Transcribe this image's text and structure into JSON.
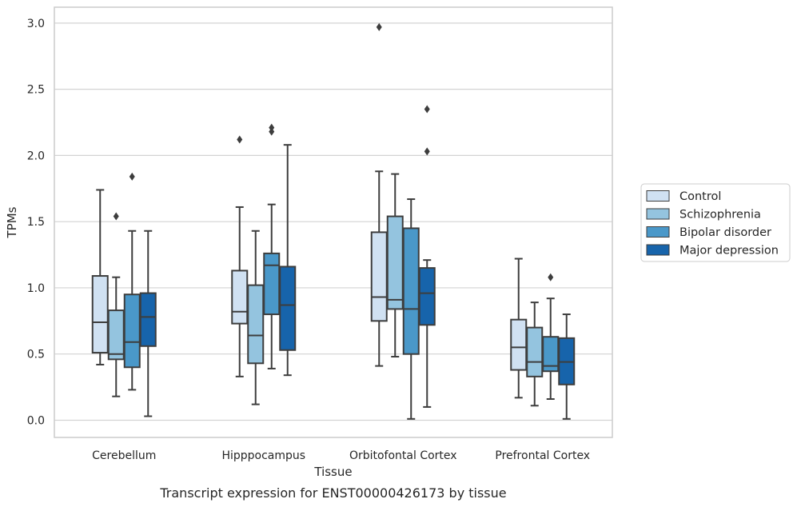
{
  "caption": "Transcript expression for ENST00000426173 by tissue",
  "chart_data": {
    "type": "box",
    "title": "",
    "xlabel": "Tissue",
    "ylabel": "TPMs",
    "ylim": [
      -0.13,
      3.12
    ],
    "yticks": [
      0.0,
      0.5,
      1.0,
      1.5,
      2.0,
      2.5,
      3.0
    ],
    "ytick_labels": [
      "0.0",
      "0.5",
      "1.0",
      "1.5",
      "2.0",
      "2.5",
      "3.0"
    ],
    "grid": "horizontal",
    "legend_position": "right",
    "categories": [
      "Cerebellum",
      "Hipppocampus",
      "Orbitofontal Cortex",
      "Prefrontal Cortex"
    ],
    "series": [
      {
        "name": "Control",
        "color": "#d0e1f2",
        "boxes": [
          {
            "whislo": 0.42,
            "q1": 0.51,
            "med": 0.74,
            "q3": 1.09,
            "whishi": 1.74,
            "fliers": []
          },
          {
            "whislo": 0.33,
            "q1": 0.73,
            "med": 0.82,
            "q3": 1.13,
            "whishi": 1.61,
            "fliers": [
              2.12
            ]
          },
          {
            "whislo": 0.41,
            "q1": 0.75,
            "med": 0.93,
            "q3": 1.42,
            "whishi": 1.88,
            "fliers": [
              2.97
            ]
          },
          {
            "whislo": 0.17,
            "q1": 0.38,
            "med": 0.55,
            "q3": 0.76,
            "whishi": 1.22,
            "fliers": []
          }
        ]
      },
      {
        "name": "Schizophrenia",
        "color": "#94c4df",
        "boxes": [
          {
            "whislo": 0.18,
            "q1": 0.46,
            "med": 0.5,
            "q3": 0.83,
            "whishi": 1.08,
            "fliers": [
              1.54
            ]
          },
          {
            "whislo": 0.12,
            "q1": 0.43,
            "med": 0.64,
            "q3": 1.02,
            "whishi": 1.43,
            "fliers": []
          },
          {
            "whislo": 0.48,
            "q1": 0.84,
            "med": 0.91,
            "q3": 1.54,
            "whishi": 1.86,
            "fliers": []
          },
          {
            "whislo": 0.11,
            "q1": 0.33,
            "med": 0.44,
            "q3": 0.7,
            "whishi": 0.89,
            "fliers": []
          }
        ]
      },
      {
        "name": "Bipolar disorder",
        "color": "#4a98c9",
        "boxes": [
          {
            "whislo": 0.23,
            "q1": 0.4,
            "med": 0.59,
            "q3": 0.95,
            "whishi": 1.43,
            "fliers": [
              1.84
            ]
          },
          {
            "whislo": 0.39,
            "q1": 0.8,
            "med": 1.17,
            "q3": 1.26,
            "whishi": 1.63,
            "fliers": [
              2.18,
              2.21
            ]
          },
          {
            "whislo": 0.01,
            "q1": 0.5,
            "med": 0.84,
            "q3": 1.45,
            "whishi": 1.67,
            "fliers": []
          },
          {
            "whislo": 0.16,
            "q1": 0.37,
            "med": 0.41,
            "q3": 0.63,
            "whishi": 0.92,
            "fliers": [
              1.08
            ]
          }
        ]
      },
      {
        "name": "Major depression",
        "color": "#1764ab",
        "boxes": [
          {
            "whislo": 0.03,
            "q1": 0.56,
            "med": 0.78,
            "q3": 0.96,
            "whishi": 1.43,
            "fliers": []
          },
          {
            "whislo": 0.34,
            "q1": 0.53,
            "med": 0.87,
            "q3": 1.16,
            "whishi": 2.08,
            "fliers": []
          },
          {
            "whislo": 0.1,
            "q1": 0.72,
            "med": 0.96,
            "q3": 1.15,
            "whishi": 1.21,
            "fliers": [
              2.03,
              2.35
            ]
          },
          {
            "whislo": 0.01,
            "q1": 0.27,
            "med": 0.44,
            "q3": 0.62,
            "whishi": 0.8,
            "fliers": []
          }
        ]
      }
    ]
  }
}
